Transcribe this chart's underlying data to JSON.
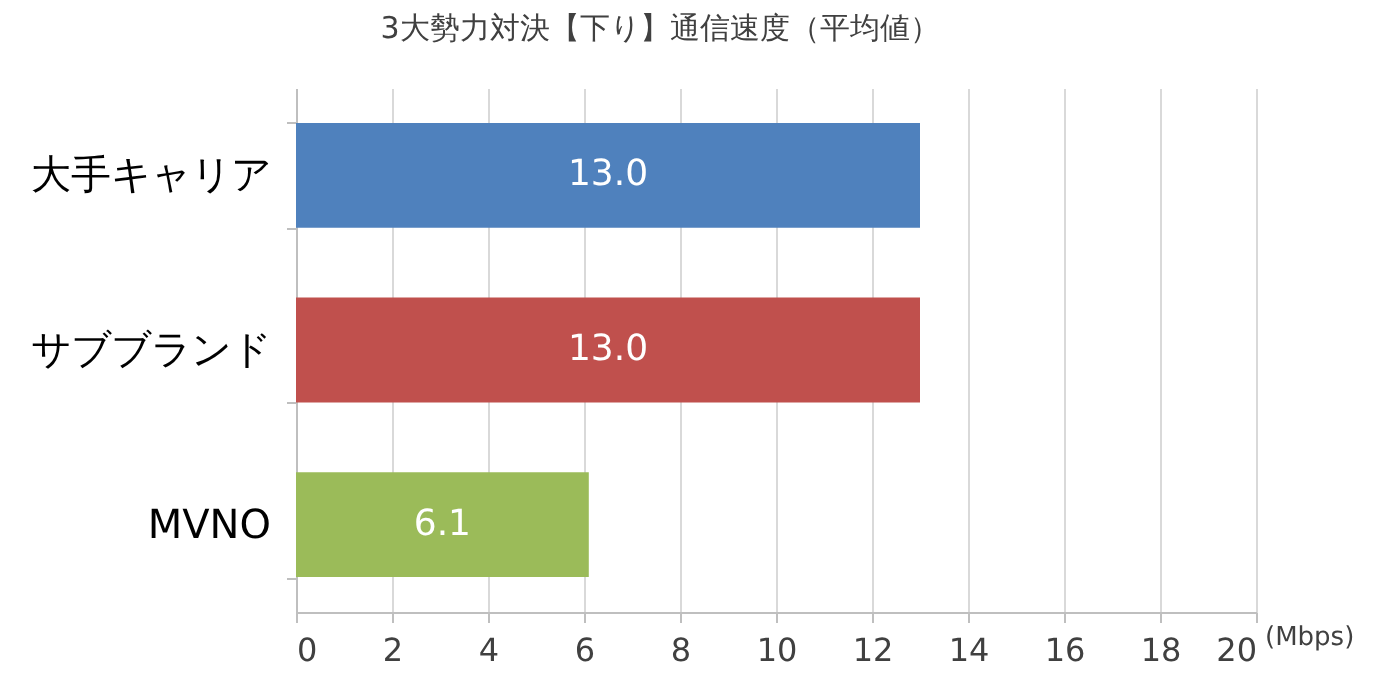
{
  "chart_data": {
    "type": "bar",
    "orientation": "horizontal",
    "title": "3大勢力対決【下り】通信速度（平均値）",
    "xlabel": "(Mbps)",
    "categories": [
      "大手キャリア",
      "サブブランド",
      "MVNO"
    ],
    "values": [
      13.0,
      13.0,
      6.1
    ],
    "colors": [
      "#4f81bd",
      "#c0504d",
      "#9bbb59"
    ],
    "xlim": [
      0,
      20
    ],
    "xticks": [
      0,
      2,
      4,
      6,
      8,
      10,
      12,
      14,
      16,
      18,
      20
    ],
    "grid": "x",
    "value_labels": [
      "13.0",
      "13.0",
      "6.1"
    ]
  }
}
